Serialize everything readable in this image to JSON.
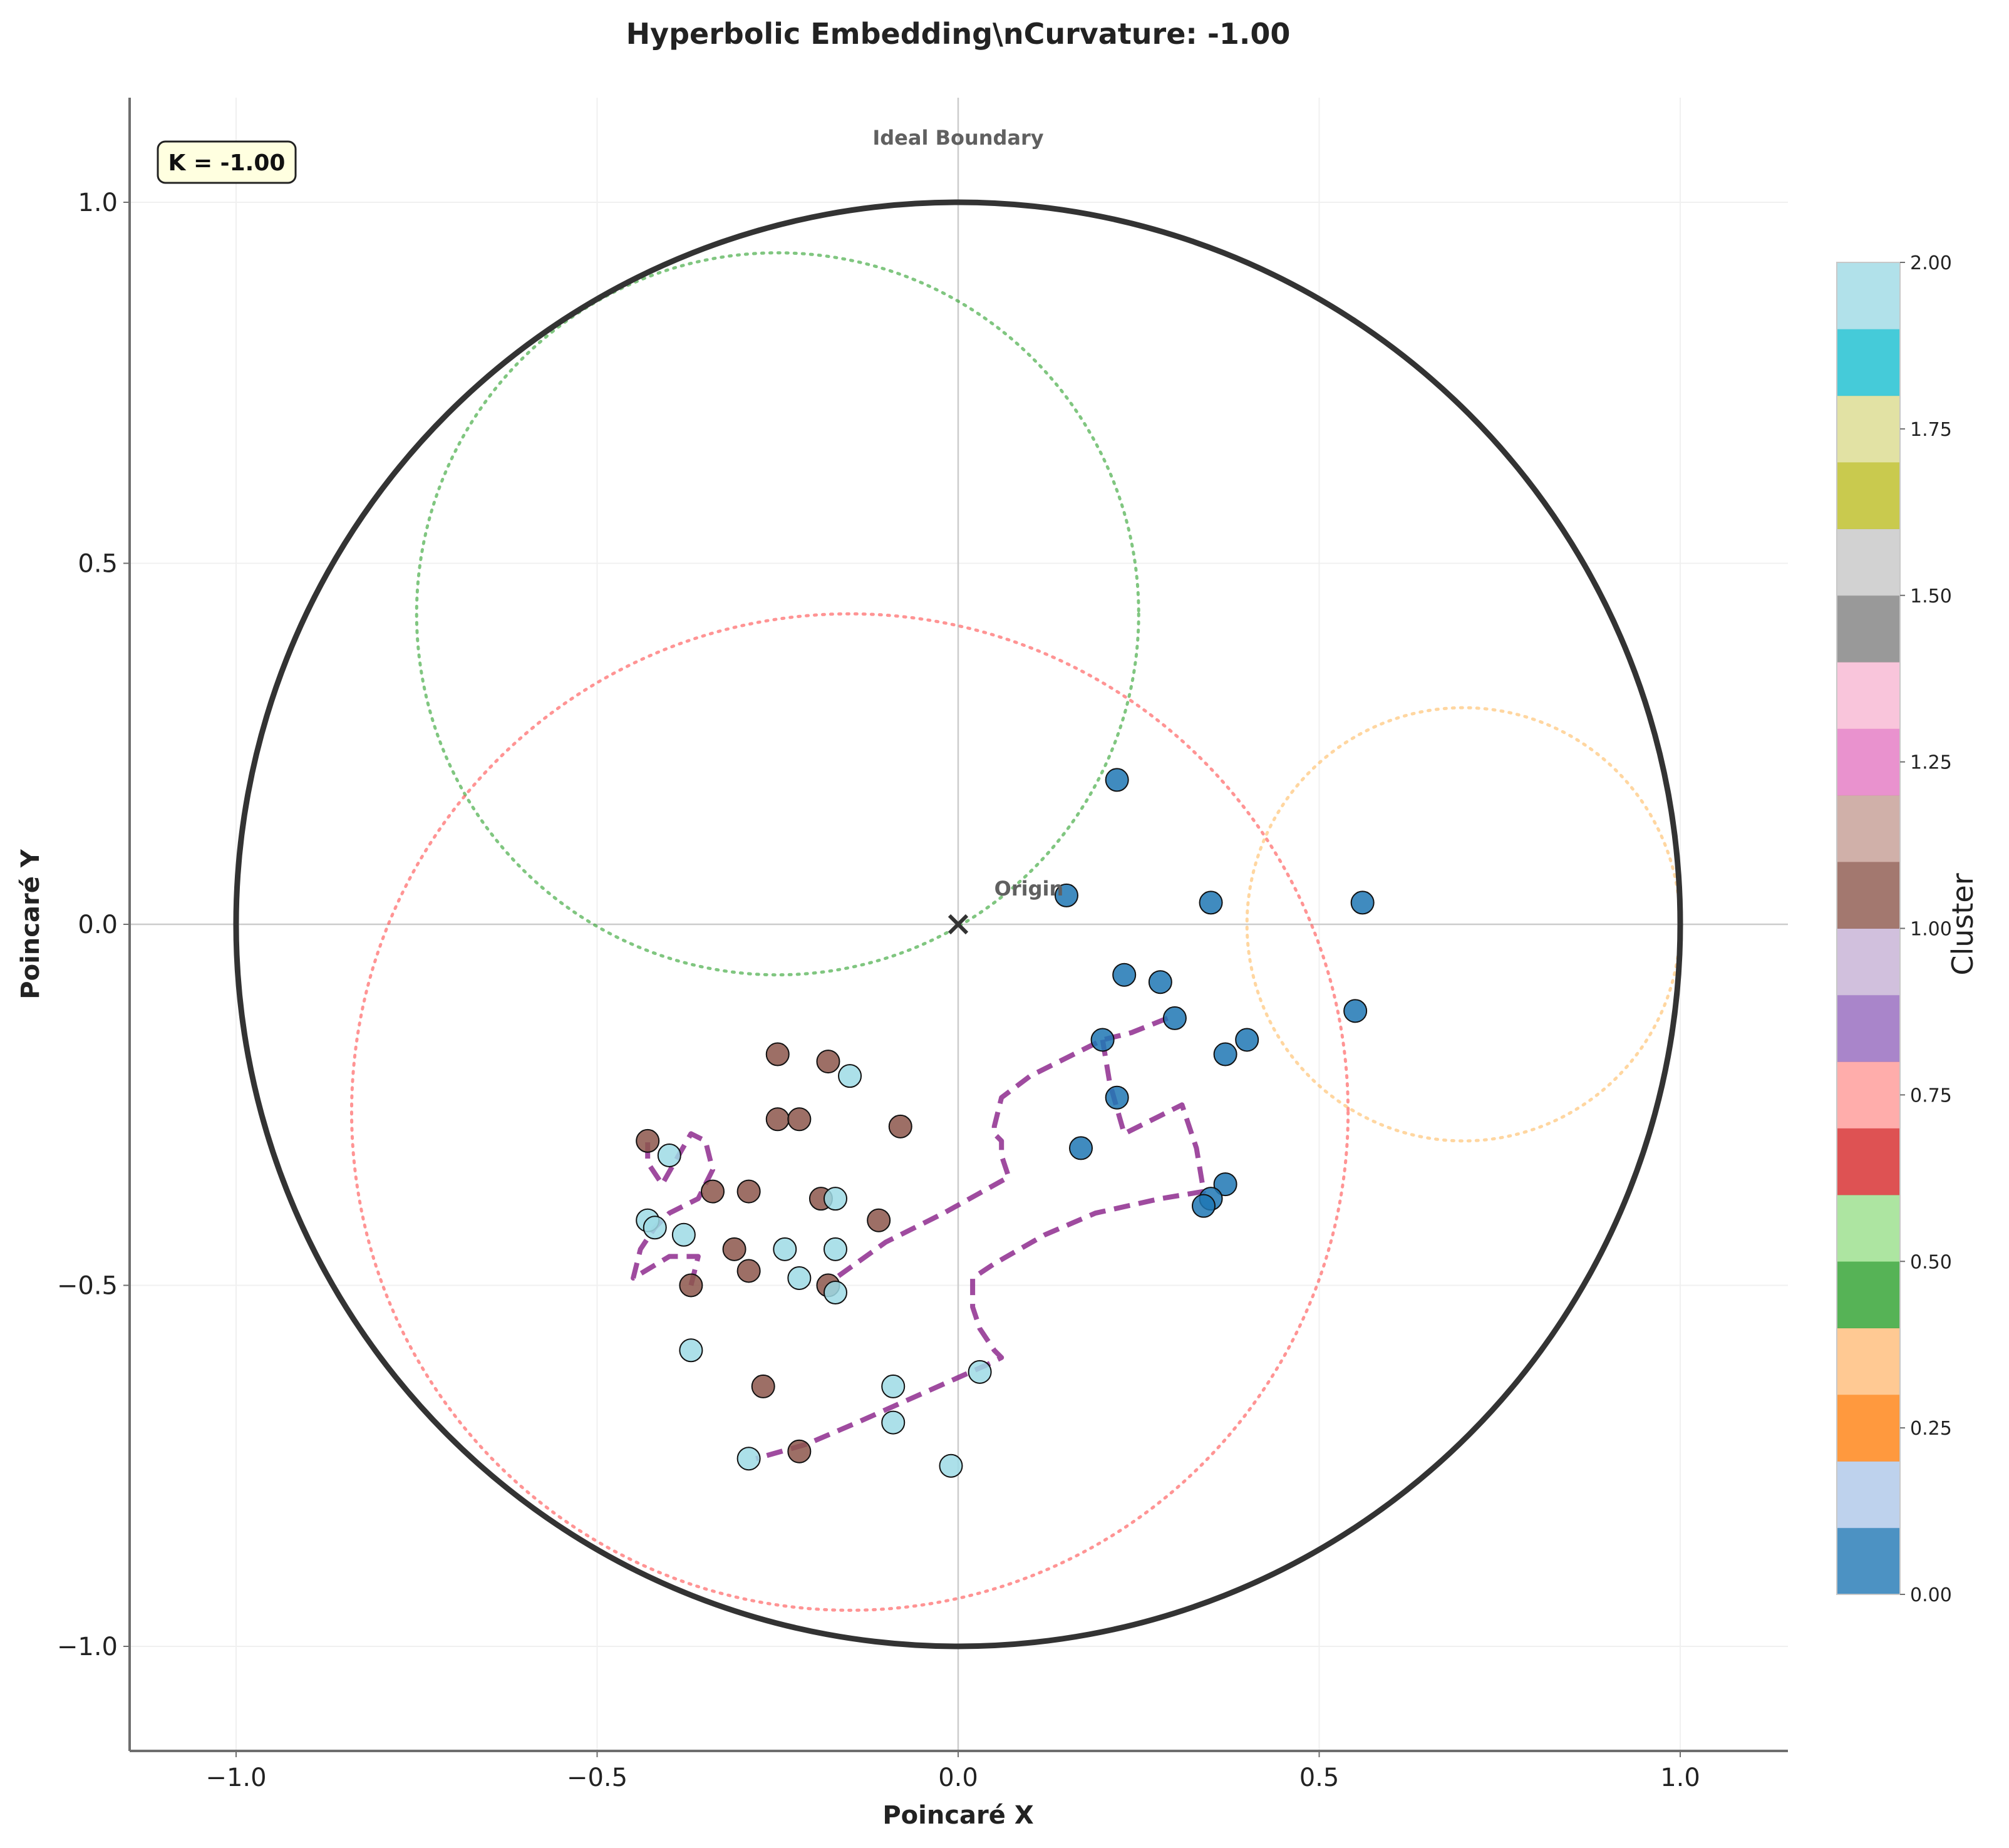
{
  "chart_data": {
    "type": "scatter",
    "title": "Hyperbolic Embedding\\nCurvature: -1.00",
    "xlabel": "Poincaré X",
    "ylabel": "Poincaré Y",
    "xlim": [
      -1.15,
      1.15
    ],
    "ylim": [
      -1.15,
      1.15
    ],
    "xticks": [
      "−1.0",
      "−0.5",
      "0.0",
      "0.5",
      "1.0"
    ],
    "yticks": [
      "−1.0",
      "−0.5",
      "0.0",
      "0.5",
      "1.0"
    ],
    "xtick_values": [
      -1.0,
      -0.5,
      0.0,
      0.5,
      1.0
    ],
    "ytick_values": [
      -1.0,
      -0.5,
      0.0,
      0.5,
      1.0
    ],
    "grid": true,
    "boundary_label": "Ideal Boundary",
    "origin_label": "Origin",
    "curvature_box": "K = -1.00",
    "colorbar": {
      "label": "Cluster",
      "range": [
        0,
        2
      ],
      "ticks": [
        "0.00",
        "0.25",
        "0.50",
        "0.75",
        "1.00",
        "1.25",
        "1.50",
        "1.75",
        "2.00"
      ],
      "tick_values": [
        0,
        0.25,
        0.5,
        0.75,
        1.0,
        1.25,
        1.5,
        1.75,
        2.0
      ],
      "colors": [
        "#1f77b4",
        "#aec7e8",
        "#ff7f0e",
        "#ffbb78",
        "#2ca02c",
        "#98df8a",
        "#d62728",
        "#ff9896",
        "#9467bd",
        "#c5b0d5",
        "#8c564b",
        "#c49c94",
        "#e377c2",
        "#f7b6d2",
        "#7f7f7f",
        "#c7c7c7",
        "#bcbd22",
        "#dbdb8d",
        "#17becf",
        "#9edae5"
      ]
    },
    "cluster_colors": {
      "0": "#1f77b4",
      "1": "#8c564b",
      "2": "#9edae5"
    },
    "points": [
      {
        "x": 0.22,
        "y": 0.2,
        "cluster": 0
      },
      {
        "x": 0.15,
        "y": 0.04,
        "cluster": 0
      },
      {
        "x": 0.35,
        "y": 0.03,
        "cluster": 0
      },
      {
        "x": 0.56,
        "y": 0.03,
        "cluster": 0
      },
      {
        "x": 0.23,
        "y": -0.07,
        "cluster": 0
      },
      {
        "x": 0.28,
        "y": -0.08,
        "cluster": 0
      },
      {
        "x": 0.55,
        "y": -0.12,
        "cluster": 0
      },
      {
        "x": 0.3,
        "y": -0.13,
        "cluster": 0
      },
      {
        "x": 0.2,
        "y": -0.16,
        "cluster": 0
      },
      {
        "x": 0.4,
        "y": -0.16,
        "cluster": 0
      },
      {
        "x": 0.37,
        "y": -0.18,
        "cluster": 0
      },
      {
        "x": 0.22,
        "y": -0.24,
        "cluster": 0
      },
      {
        "x": 0.17,
        "y": -0.31,
        "cluster": 0
      },
      {
        "x": 0.37,
        "y": -0.36,
        "cluster": 0
      },
      {
        "x": 0.35,
        "y": -0.38,
        "cluster": 0
      },
      {
        "x": 0.34,
        "y": -0.39,
        "cluster": 0
      },
      {
        "x": -0.25,
        "y": -0.18,
        "cluster": 1
      },
      {
        "x": -0.18,
        "y": -0.19,
        "cluster": 1
      },
      {
        "x": -0.25,
        "y": -0.27,
        "cluster": 1
      },
      {
        "x": -0.22,
        "y": -0.27,
        "cluster": 1
      },
      {
        "x": -0.08,
        "y": -0.28,
        "cluster": 1
      },
      {
        "x": -0.43,
        "y": -0.3,
        "cluster": 1
      },
      {
        "x": -0.34,
        "y": -0.37,
        "cluster": 1
      },
      {
        "x": -0.29,
        "y": -0.37,
        "cluster": 1
      },
      {
        "x": -0.19,
        "y": -0.38,
        "cluster": 1
      },
      {
        "x": -0.11,
        "y": -0.41,
        "cluster": 1
      },
      {
        "x": -0.31,
        "y": -0.45,
        "cluster": 1
      },
      {
        "x": -0.29,
        "y": -0.48,
        "cluster": 1
      },
      {
        "x": -0.18,
        "y": -0.5,
        "cluster": 1
      },
      {
        "x": -0.37,
        "y": -0.5,
        "cluster": 1
      },
      {
        "x": -0.27,
        "y": -0.64,
        "cluster": 1
      },
      {
        "x": -0.22,
        "y": -0.73,
        "cluster": 1
      },
      {
        "x": -0.15,
        "y": -0.21,
        "cluster": 2
      },
      {
        "x": -0.4,
        "y": -0.32,
        "cluster": 2
      },
      {
        "x": -0.17,
        "y": -0.38,
        "cluster": 2
      },
      {
        "x": -0.43,
        "y": -0.41,
        "cluster": 2
      },
      {
        "x": -0.42,
        "y": -0.42,
        "cluster": 2
      },
      {
        "x": -0.38,
        "y": -0.43,
        "cluster": 2
      },
      {
        "x": -0.24,
        "y": -0.45,
        "cluster": 2
      },
      {
        "x": -0.17,
        "y": -0.45,
        "cluster": 2
      },
      {
        "x": -0.22,
        "y": -0.49,
        "cluster": 2
      },
      {
        "x": -0.17,
        "y": -0.51,
        "cluster": 2
      },
      {
        "x": -0.37,
        "y": -0.59,
        "cluster": 2
      },
      {
        "x": 0.03,
        "y": -0.62,
        "cluster": 2
      },
      {
        "x": -0.09,
        "y": -0.64,
        "cluster": 2
      },
      {
        "x": -0.09,
        "y": -0.69,
        "cluster": 2
      },
      {
        "x": -0.29,
        "y": -0.74,
        "cluster": 2
      },
      {
        "x": -0.01,
        "y": -0.75,
        "cluster": 2
      }
    ],
    "reference_circles": [
      {
        "cx": -0.25,
        "cy": 0.43,
        "r": 0.5,
        "color": "#2ca02c",
        "style": "dotted"
      },
      {
        "cx": -0.15,
        "cy": -0.26,
        "r": 0.69,
        "color": "#ff4d4d",
        "style": "dotted"
      },
      {
        "cx": 0.7,
        "cy": 0.0,
        "r": 0.3,
        "color": "#ffbb60",
        "style": "dotted"
      }
    ],
    "geodesic_paths": [
      {
        "color": "#8e2b8e",
        "points": [
          [
            0.29,
            -0.13
          ],
          [
            0.24,
            -0.15
          ],
          [
            0.2,
            -0.16
          ],
          [
            0.14,
            -0.19
          ],
          [
            0.1,
            -0.21
          ],
          [
            0.06,
            -0.24
          ],
          [
            0.05,
            -0.28
          ],
          [
            0.05,
            -0.29
          ],
          [
            0.06,
            -0.3
          ],
          [
            0.06,
            -0.32
          ],
          [
            0.07,
            -0.35
          ],
          [
            -0.02,
            -0.4
          ],
          [
            -0.1,
            -0.44
          ],
          [
            -0.17,
            -0.49
          ]
        ]
      },
      {
        "color": "#8e2b8e",
        "points": [
          [
            0.2,
            -0.16
          ],
          [
            0.21,
            -0.22
          ],
          [
            0.23,
            -0.29
          ],
          [
            0.29,
            -0.26
          ],
          [
            0.31,
            -0.25
          ],
          [
            0.33,
            -0.31
          ],
          [
            0.34,
            -0.37
          ],
          [
            0.28,
            -0.38
          ],
          [
            0.19,
            -0.4
          ],
          [
            0.12,
            -0.43
          ],
          [
            0.05,
            -0.47
          ],
          [
            0.02,
            -0.49
          ],
          [
            0.02,
            -0.53
          ],
          [
            0.03,
            -0.56
          ],
          [
            0.05,
            -0.59
          ],
          [
            0.06,
            -0.6
          ],
          [
            0.04,
            -0.61
          ],
          [
            -0.05,
            -0.65
          ],
          [
            -0.14,
            -0.69
          ],
          [
            -0.21,
            -0.72
          ],
          [
            -0.28,
            -0.74
          ]
        ]
      },
      {
        "color": "#8e2b8e",
        "points": [
          [
            -0.37,
            -0.5
          ],
          [
            -0.36,
            -0.46
          ],
          [
            -0.4,
            -0.46
          ],
          [
            -0.45,
            -0.49
          ],
          [
            -0.44,
            -0.45
          ],
          [
            -0.42,
            -0.42
          ],
          [
            -0.4,
            -0.4
          ],
          [
            -0.36,
            -0.38
          ],
          [
            -0.34,
            -0.34
          ],
          [
            -0.35,
            -0.3
          ],
          [
            -0.37,
            -0.29
          ],
          [
            -0.41,
            -0.36
          ],
          [
            -0.43,
            -0.33
          ],
          [
            -0.43,
            -0.29
          ]
        ]
      }
    ]
  }
}
